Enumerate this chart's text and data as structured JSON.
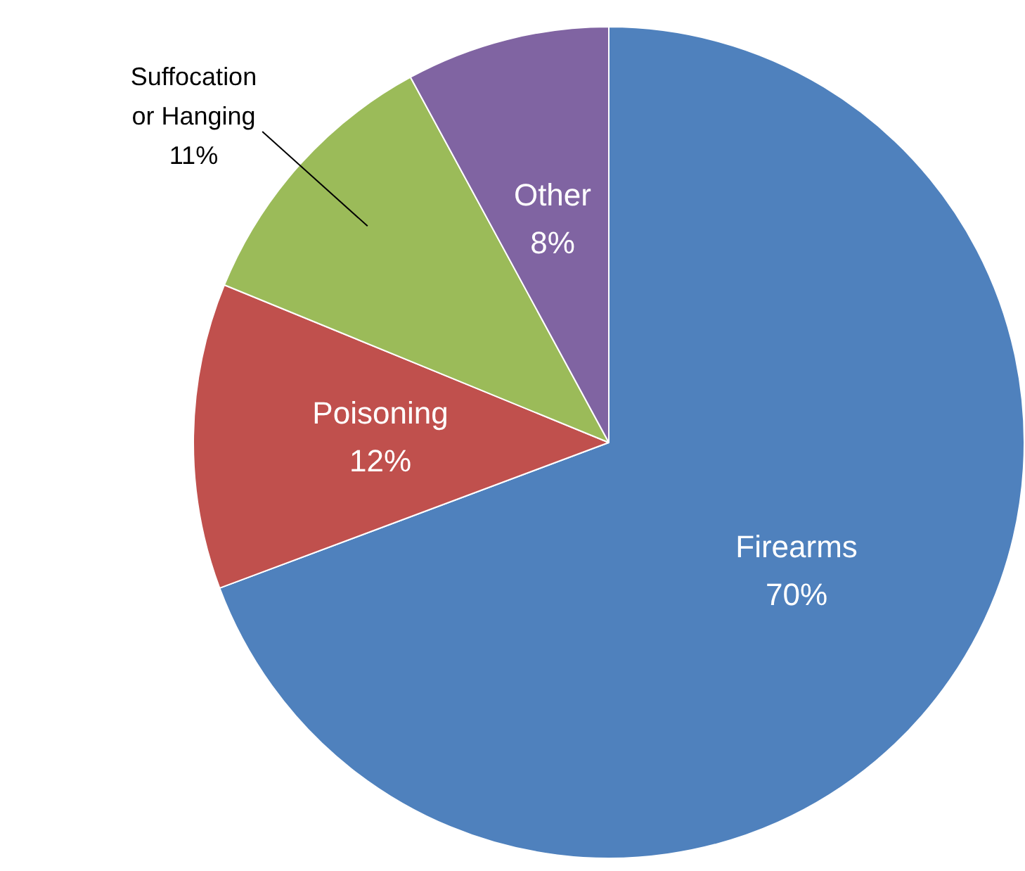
{
  "chart_data": {
    "type": "pie",
    "categories": [
      "Firearms",
      "Poisoning",
      "Suffocation or Hanging",
      "Other"
    ],
    "values": [
      70,
      12,
      11,
      8
    ],
    "value_labels": [
      "70%",
      "12%",
      "11%",
      "8%"
    ],
    "colors": [
      "#4f81bd",
      "#c0504d",
      "#9bbb59",
      "#8064a2"
    ],
    "legend": false
  }
}
